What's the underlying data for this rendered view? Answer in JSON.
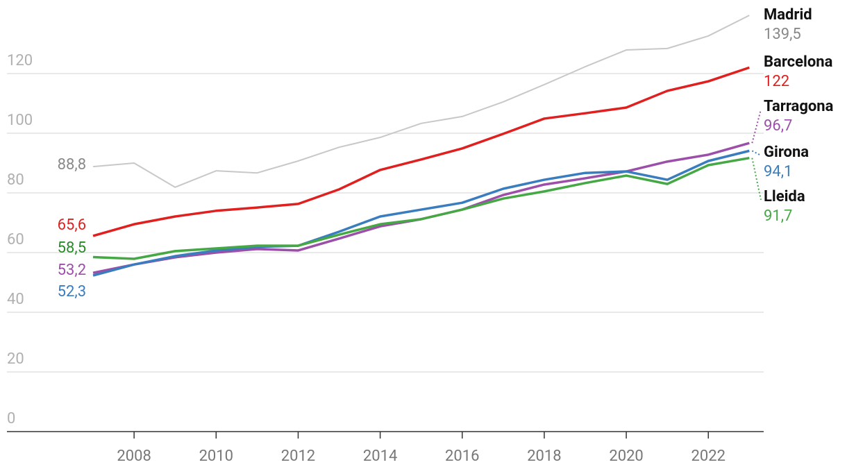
{
  "chart_data": {
    "type": "line",
    "x": [
      2007,
      2008,
      2009,
      2010,
      2011,
      2012,
      2013,
      2014,
      2015,
      2016,
      2017,
      2018,
      2019,
      2020,
      2021,
      2022,
      2023
    ],
    "xlim": [
      2004.9,
      2023.35
    ],
    "xticks": [
      2008,
      2010,
      2012,
      2014,
      2016,
      2018,
      2020,
      2022
    ],
    "ylim": [
      0,
      140
    ],
    "yticks": [
      0,
      20,
      40,
      60,
      80,
      100,
      120
    ],
    "grid": true,
    "series": [
      {
        "name": "Madrid",
        "color": "#c8c8c8",
        "values": [
          88.8,
          90,
          81.9,
          87.4,
          86.7,
          90.7,
          95.3,
          98.6,
          103.3,
          105.6,
          110.5,
          116.3,
          122.3,
          127.9,
          128.4,
          132.6,
          139.5
        ],
        "value_labels": [
          "88,8",
          null,
          null,
          null,
          null,
          null,
          null,
          null,
          null,
          null,
          null,
          null,
          null,
          null,
          null,
          null,
          "139,5"
        ]
      },
      {
        "name": "Barcelona",
        "color": "#e0201f",
        "values": [
          65.6,
          69.5,
          72.1,
          74,
          75.1,
          76.3,
          81.2,
          87.7,
          91.2,
          94.9,
          99.8,
          104.9,
          106.7,
          108.6,
          114.2,
          117.4,
          122
        ],
        "value_labels": [
          "65,6",
          null,
          null,
          null,
          null,
          null,
          null,
          null,
          null,
          null,
          null,
          null,
          null,
          null,
          null,
          null,
          "122"
        ]
      },
      {
        "name": "Tarragona",
        "color": "#9b4fa8",
        "values": [
          53.2,
          56,
          58.4,
          60,
          61.2,
          60.7,
          64.7,
          68.8,
          71.2,
          74.4,
          79.3,
          82.8,
          84.9,
          87.2,
          90.5,
          92.8,
          96.7
        ],
        "value_labels": [
          "53,2",
          null,
          null,
          null,
          null,
          null,
          null,
          null,
          null,
          null,
          null,
          null,
          null,
          null,
          null,
          null,
          "96,7"
        ]
      },
      {
        "name": "Girona",
        "color": "#3a7dbf",
        "values": [
          52.3,
          56,
          58.8,
          60.7,
          61.9,
          62.3,
          67,
          72.1,
          74.4,
          76.7,
          81.4,
          84.4,
          86.7,
          87.2,
          84.4,
          90.7,
          94.1
        ],
        "value_labels": [
          "52,3",
          null,
          null,
          null,
          null,
          null,
          null,
          null,
          null,
          null,
          null,
          null,
          null,
          null,
          null,
          null,
          "94,1"
        ]
      },
      {
        "name": "Lleida",
        "color": "#45a845",
        "values": [
          58.5,
          57.9,
          60.5,
          61.4,
          62.3,
          62.3,
          66,
          69.5,
          71.2,
          74.4,
          78.1,
          80.5,
          83.3,
          85.8,
          83,
          89.3,
          91.7
        ],
        "value_labels": [
          "58,5",
          null,
          null,
          null,
          null,
          null,
          null,
          null,
          null,
          null,
          null,
          null,
          null,
          null,
          null,
          null,
          "91,7"
        ]
      }
    ]
  }
}
